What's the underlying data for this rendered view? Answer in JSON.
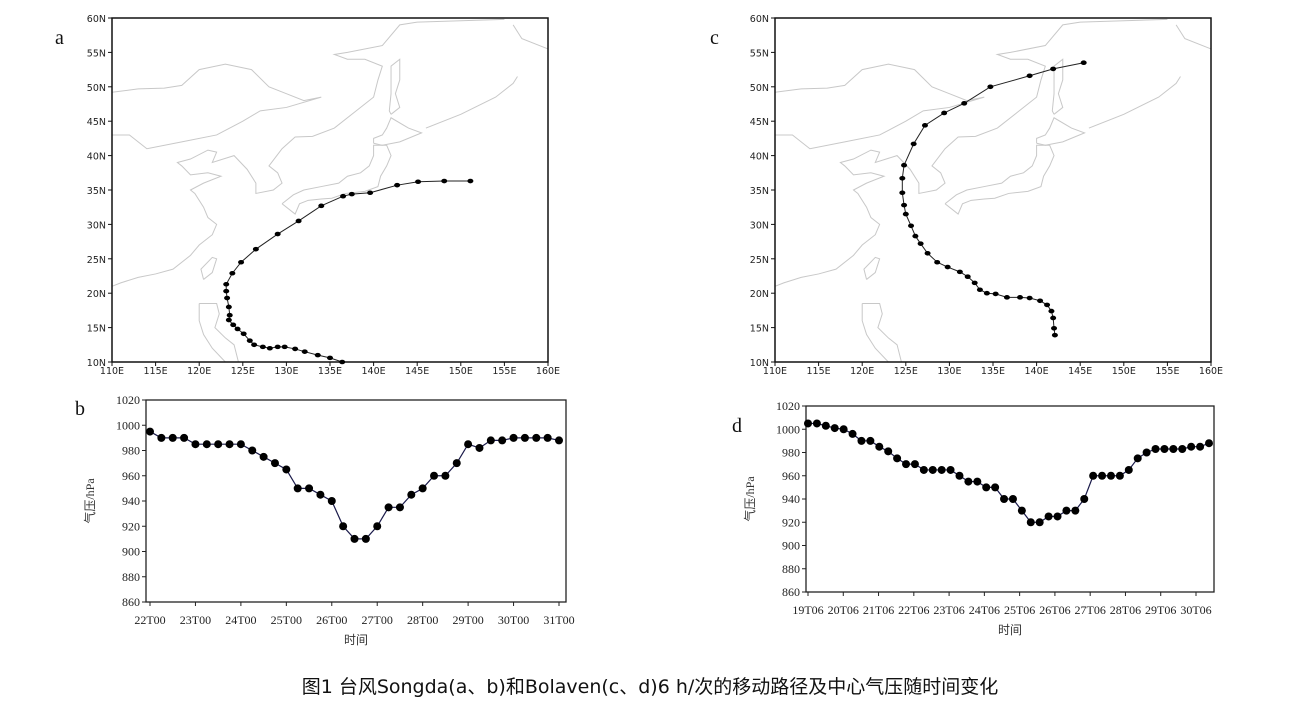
{
  "caption": "图1  台风Songda(a、b)和Bolaven(c、d)6 h/次的移动路径及中心气压随时间变化",
  "maps": [
    {
      "letter": "a",
      "lon_ticks": [
        "110E",
        "115E",
        "120E",
        "125E",
        "130E",
        "135E",
        "140E",
        "145E",
        "150E",
        "155E",
        "160E"
      ],
      "lat_ticks": [
        "10N",
        "15N",
        "20N",
        "25N",
        "30N",
        "35N",
        "40N",
        "45N",
        "50N",
        "55N",
        "60N"
      ],
      "lon_range": [
        110,
        160
      ],
      "lat_range": [
        10,
        60
      ],
      "track": [
        [
          136.4,
          10.0
        ],
        [
          135.0,
          10.6
        ],
        [
          133.6,
          11.0
        ],
        [
          132.1,
          11.5
        ],
        [
          131.0,
          11.9
        ],
        [
          129.8,
          12.2
        ],
        [
          129.0,
          12.2
        ],
        [
          128.1,
          12.0
        ],
        [
          127.3,
          12.2
        ],
        [
          126.3,
          12.5
        ],
        [
          125.8,
          13.1
        ],
        [
          125.1,
          14.1
        ],
        [
          124.4,
          14.8
        ],
        [
          123.9,
          15.4
        ],
        [
          123.4,
          16.1
        ],
        [
          123.5,
          16.8
        ],
        [
          123.4,
          18.0
        ],
        [
          123.2,
          19.3
        ],
        [
          123.1,
          20.3
        ],
        [
          123.1,
          21.3
        ],
        [
          123.8,
          22.9
        ],
        [
          124.8,
          24.5
        ],
        [
          126.5,
          26.4
        ],
        [
          129.0,
          28.6
        ],
        [
          131.4,
          30.5
        ],
        [
          134.0,
          32.7
        ],
        [
          136.5,
          34.1
        ],
        [
          137.5,
          34.4
        ],
        [
          139.6,
          34.6
        ],
        [
          142.7,
          35.7
        ],
        [
          145.1,
          36.2
        ],
        [
          148.1,
          36.3
        ],
        [
          151.1,
          36.3
        ]
      ]
    },
    {
      "letter": "c",
      "lon_ticks": [
        "110E",
        "115E",
        "120E",
        "125E",
        "130E",
        "135E",
        "140E",
        "145E",
        "150E",
        "155E",
        "160E"
      ],
      "lat_ticks": [
        "10N",
        "15N",
        "20N",
        "25N",
        "30N",
        "35N",
        "40N",
        "45N",
        "50N",
        "55N",
        "60N"
      ],
      "lon_range": [
        110,
        160
      ],
      "lat_range": [
        10,
        60
      ],
      "track": [
        [
          145.4,
          53.5
        ],
        [
          141.9,
          52.6
        ],
        [
          139.2,
          51.6
        ],
        [
          134.7,
          50.0
        ],
        [
          131.7,
          47.6
        ],
        [
          129.4,
          46.2
        ],
        [
          127.2,
          44.4
        ],
        [
          125.9,
          41.7
        ],
        [
          124.8,
          38.6
        ],
        [
          124.6,
          36.7
        ],
        [
          124.6,
          34.6
        ],
        [
          124.8,
          32.8
        ],
        [
          125.0,
          31.5
        ],
        [
          125.6,
          29.8
        ],
        [
          126.1,
          28.3
        ],
        [
          126.7,
          27.2
        ],
        [
          127.5,
          25.8
        ],
        [
          128.6,
          24.5
        ],
        [
          129.8,
          23.8
        ],
        [
          131.2,
          23.1
        ],
        [
          132.1,
          22.4
        ],
        [
          132.9,
          21.5
        ],
        [
          133.5,
          20.5
        ],
        [
          134.3,
          20.0
        ],
        [
          135.3,
          19.9
        ],
        [
          136.6,
          19.4
        ],
        [
          138.1,
          19.4
        ],
        [
          139.2,
          19.3
        ],
        [
          140.4,
          18.9
        ],
        [
          141.2,
          18.3
        ],
        [
          141.7,
          17.4
        ],
        [
          141.9,
          16.4
        ],
        [
          142.0,
          14.9
        ],
        [
          142.1,
          13.9
        ]
      ]
    }
  ],
  "chart_data": [
    {
      "type": "line",
      "panel": "b",
      "xlabel": "时间",
      "ylabel": "气压/hPa",
      "ylim": [
        860,
        1020
      ],
      "yticks": [
        "860",
        "880",
        "900",
        "920",
        "940",
        "960",
        "980",
        "1000",
        "1020"
      ],
      "xticks": [
        "22T00",
        "23T00",
        "24T00",
        "25T00",
        "26T00",
        "27T00",
        "28T00",
        "29T00",
        "30T00",
        "31T00"
      ],
      "values": [
        995,
        990,
        990,
        990,
        985,
        985,
        985,
        985,
        985,
        980,
        975,
        970,
        965,
        950,
        950,
        945,
        940,
        920,
        910,
        910,
        920,
        935,
        935,
        945,
        950,
        960,
        960,
        970,
        985,
        982,
        988,
        988,
        990,
        990,
        990,
        990,
        988
      ]
    },
    {
      "type": "line",
      "panel": "d",
      "xlabel": "时间",
      "ylabel": "气压/hPa",
      "ylim": [
        860,
        1020
      ],
      "yticks": [
        "860",
        "880",
        "900",
        "920",
        "940",
        "960",
        "980",
        "1000",
        "1020"
      ],
      "xticks": [
        "19T06",
        "20T06",
        "21T06",
        "22T06",
        "23T06",
        "24T06",
        "25T06",
        "26T06",
        "27T06",
        "28T06",
        "29T06",
        "30T06"
      ],
      "values": [
        1005,
        1005,
        1003,
        1001,
        1000,
        996,
        990,
        990,
        985,
        981,
        975,
        970,
        970,
        965,
        965,
        965,
        965,
        960,
        955,
        955,
        950,
        950,
        940,
        940,
        930,
        920,
        920,
        925,
        925,
        930,
        930,
        940,
        960,
        960,
        960,
        960,
        965,
        975,
        980,
        983,
        983,
        983,
        983,
        985,
        985,
        988
      ]
    }
  ]
}
